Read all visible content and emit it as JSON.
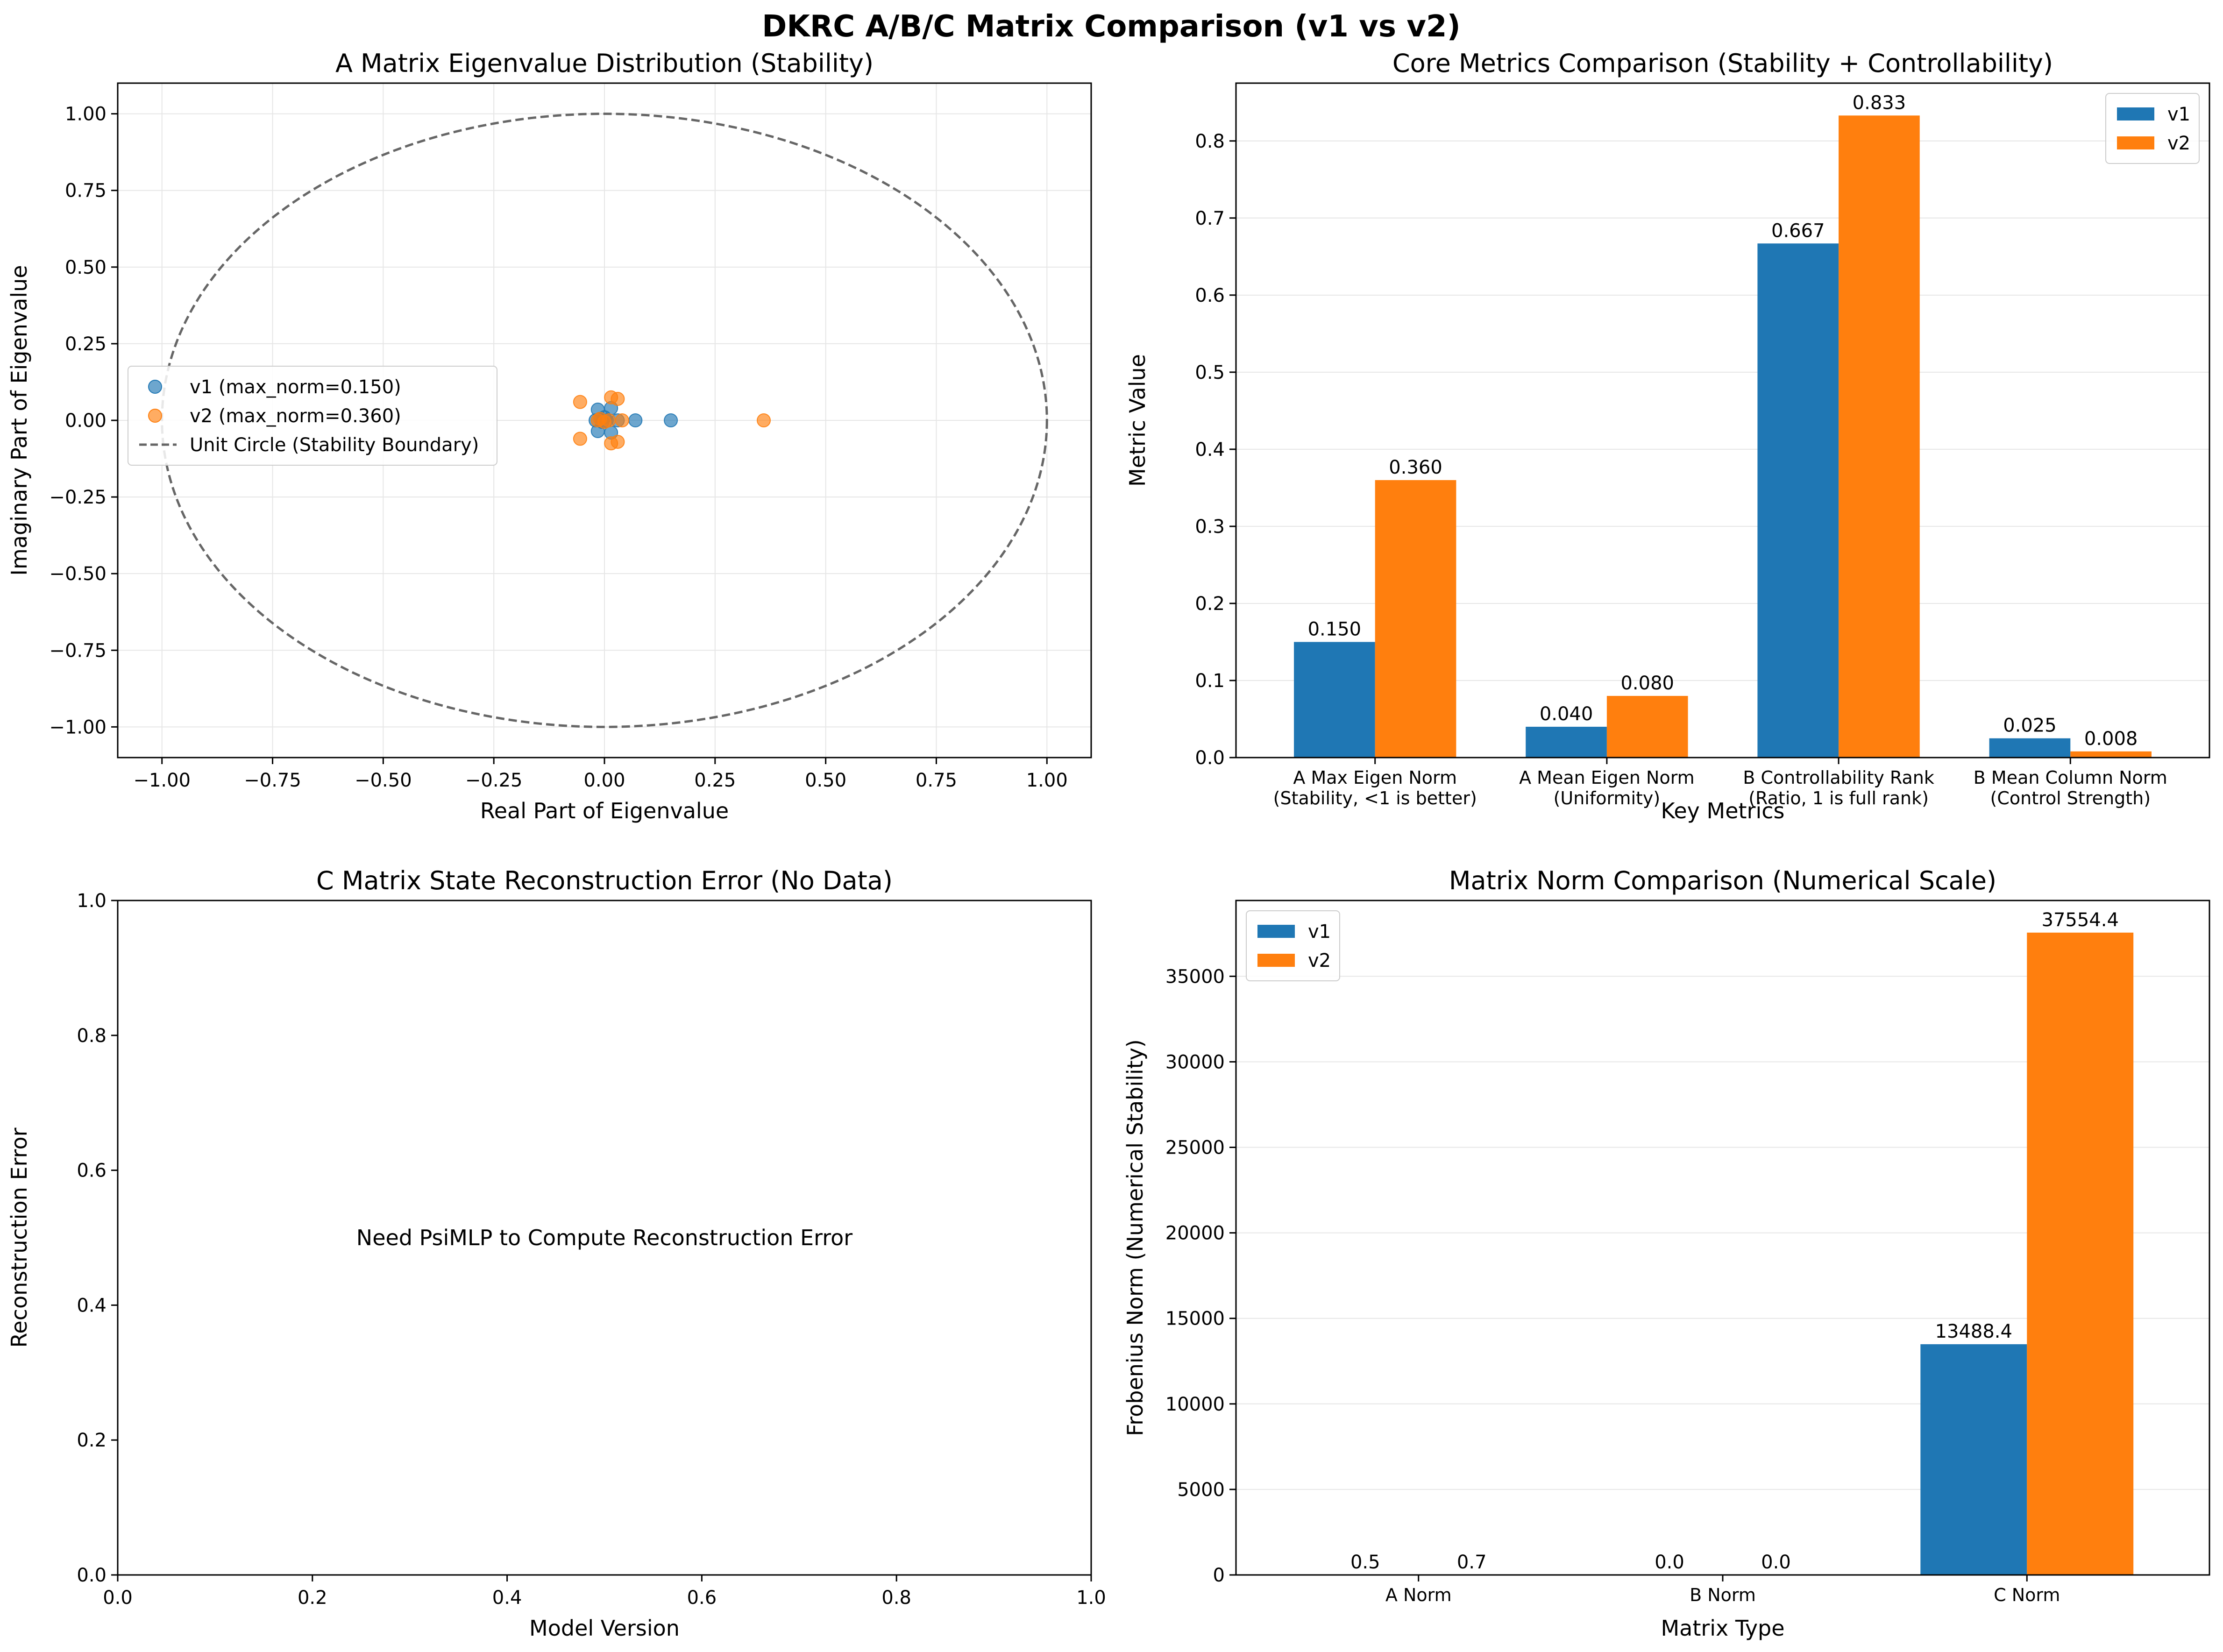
{
  "figure": {
    "suptitle": "DKRC A/B/C Matrix Comparison (v1 vs v2)"
  },
  "colors": {
    "v1": "#1f77b4",
    "v2": "#ff7f0e",
    "unit_circle": "#666666",
    "grid": "#e6e6e6"
  },
  "chart_data": [
    {
      "type": "scatter",
      "title": "A Matrix Eigenvalue Distribution (Stability)",
      "xlabel": "Real Part of Eigenvalue",
      "ylabel": "Imaginary Part of Eigenvalue",
      "xlim": [
        -1.1,
        1.1
      ],
      "ylim": [
        -1.1,
        1.1
      ],
      "xticks": [
        -1.0,
        -0.75,
        -0.5,
        -0.25,
        0.0,
        0.25,
        0.5,
        0.75,
        1.0
      ],
      "xtick_labels": [
        "−1.00",
        "−0.75",
        "−0.50",
        "−0.25",
        "0.00",
        "0.25",
        "0.50",
        "0.75",
        "1.00"
      ],
      "yticks": [
        -1.0,
        -0.75,
        -0.5,
        -0.25,
        0.0,
        0.25,
        0.5,
        0.75,
        1.0
      ],
      "ytick_labels": [
        "−1.00",
        "−0.75",
        "−0.50",
        "−0.25",
        "0.00",
        "0.25",
        "0.50",
        "0.75",
        "1.00"
      ],
      "grid": true,
      "legend_position": "center-left",
      "series": [
        {
          "name": "v1 (max_norm=0.150)",
          "points": [
            [
              0.15,
              0.0
            ],
            [
              0.07,
              0.0
            ],
            [
              0.015,
              0.04
            ],
            [
              0.015,
              -0.04
            ],
            [
              -0.015,
              0.035
            ],
            [
              -0.015,
              -0.035
            ],
            [
              -0.01,
              0.005
            ],
            [
              -0.005,
              -0.005
            ],
            [
              0.005,
              0.0
            ],
            [
              0.0,
              0.01
            ],
            [
              -0.02,
              0.0
            ],
            [
              0.03,
              0.0
            ]
          ]
        },
        {
          "name": "v2 (max_norm=0.360)",
          "points": [
            [
              0.36,
              0.0
            ],
            [
              0.04,
              0.0
            ],
            [
              0.03,
              0.07
            ],
            [
              0.03,
              -0.07
            ],
            [
              0.015,
              0.075
            ],
            [
              0.015,
              -0.075
            ],
            [
              -0.055,
              0.06
            ],
            [
              -0.055,
              -0.06
            ],
            [
              -0.01,
              0.005
            ],
            [
              0.0,
              -0.005
            ],
            [
              0.01,
              0.0
            ],
            [
              -0.015,
              0.0
            ]
          ]
        }
      ],
      "reference_curve": {
        "name": "Unit Circle (Stability Boundary)",
        "radius": 1.0
      }
    },
    {
      "type": "bar",
      "title": "Core Metrics Comparison (Stability + Controllability)",
      "xlabel": "Key Metrics",
      "ylabel": "Metric Value",
      "categories": [
        [
          "A Max Eigen Norm",
          "(Stability, <1 is better)"
        ],
        [
          "A Mean Eigen Norm",
          "(Uniformity)"
        ],
        [
          "B Controllability Rank",
          "(Ratio, 1 is full rank)"
        ],
        [
          "B Mean Column Norm",
          "(Control Strength)"
        ]
      ],
      "series": [
        {
          "name": "v1",
          "values": [
            0.15,
            0.04,
            0.667,
            0.025
          ],
          "labels": [
            "0.150",
            "0.040",
            "0.667",
            "0.025"
          ]
        },
        {
          "name": "v2",
          "values": [
            0.36,
            0.08,
            0.833,
            0.008
          ],
          "labels": [
            "0.360",
            "0.080",
            "0.833",
            "0.008"
          ]
        }
      ],
      "ylim": [
        0,
        0.875
      ],
      "yticks": [
        0.0,
        0.1,
        0.2,
        0.3,
        0.4,
        0.5,
        0.6,
        0.7,
        0.8
      ],
      "ytick_labels": [
        "0.0",
        "0.1",
        "0.2",
        "0.3",
        "0.4",
        "0.5",
        "0.6",
        "0.7",
        "0.8"
      ],
      "grid": "y",
      "legend_position": "top-right"
    },
    {
      "type": "empty",
      "title": "C Matrix State Reconstruction Error (No Data)",
      "xlabel": "Model Version",
      "ylabel": "Reconstruction Error",
      "xlim": [
        0,
        1
      ],
      "ylim": [
        0,
        1
      ],
      "xticks": [
        0.0,
        0.2,
        0.4,
        0.6,
        0.8,
        1.0
      ],
      "xtick_labels": [
        "0.0",
        "0.2",
        "0.4",
        "0.6",
        "0.8",
        "1.0"
      ],
      "yticks": [
        0.0,
        0.2,
        0.4,
        0.6,
        0.8,
        1.0
      ],
      "ytick_labels": [
        "0.0",
        "0.2",
        "0.4",
        "0.6",
        "0.8",
        "1.0"
      ],
      "annotation": "Need PsiMLP to Compute Reconstruction Error",
      "grid": false
    },
    {
      "type": "bar",
      "title": "Matrix Norm Comparison (Numerical Scale)",
      "xlabel": "Matrix Type",
      "ylabel": "Frobenius Norm (Numerical Stability)",
      "categories": [
        [
          "A Norm"
        ],
        [
          "B Norm"
        ],
        [
          "C Norm"
        ]
      ],
      "series": [
        {
          "name": "v1",
          "values": [
            0.5,
            0.0,
            13488.4
          ],
          "labels": [
            "0.5",
            "0.0",
            "13488.4"
          ]
        },
        {
          "name": "v2",
          "values": [
            0.7,
            0.0,
            37554.4
          ],
          "labels": [
            "0.7",
            "0.0",
            "37554.4"
          ]
        }
      ],
      "ylim": [
        0,
        39432
      ],
      "yticks": [
        0,
        5000,
        10000,
        15000,
        20000,
        25000,
        30000,
        35000
      ],
      "ytick_labels": [
        "0",
        "5000",
        "10000",
        "15000",
        "20000",
        "25000",
        "30000",
        "35000"
      ],
      "grid": "y",
      "legend_position": "top-left"
    }
  ]
}
